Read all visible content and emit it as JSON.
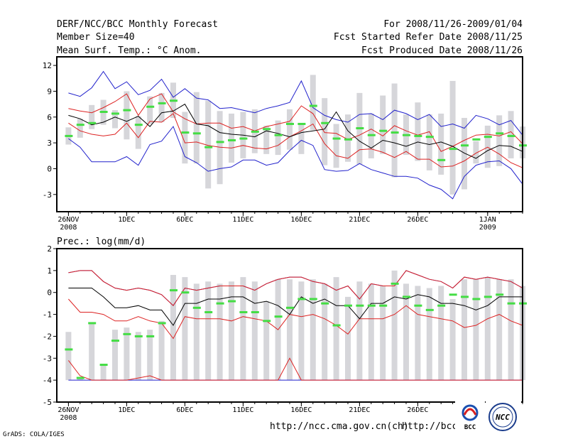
{
  "header": {
    "title": "DERF/NCC/BCC Monthly Forecast",
    "member_size": "Member Size=40",
    "period": "For 2008/11/26-2009/01/04",
    "refer_date": "Fcst Started Refer Date 2008/11/25",
    "produced_date": "Fcst Produced Date 2008/11/26"
  },
  "footer": {
    "grads_credit": "GrADS: COLA/IGES",
    "url1": "http://ncc.cma.gov.cn(ch)",
    "url2": "http://bcc.c",
    "logo_bcc": "BCC",
    "logo_ncc": "NCC"
  },
  "colors": {
    "ensemble_bar": "#d6d6da",
    "median": "#44dd44",
    "mean": "#000000",
    "sd_band": "#dd2222",
    "extreme": "#2222cc"
  },
  "chart_data": [
    {
      "id": "temperature",
      "type": "box-line",
      "title": "Mean Surf. Temp.: °C Anom.",
      "ylim": [
        -5,
        13
      ],
      "yticks": [
        12,
        9,
        6,
        3,
        0,
        -3
      ],
      "xlim": [
        0,
        40
      ],
      "xticks": [
        {
          "x": 1,
          "label": "26NOV",
          "sub": "2008"
        },
        {
          "x": 6,
          "label": "1DEC"
        },
        {
          "x": 11,
          "label": "6DEC"
        },
        {
          "x": 16,
          "label": "11DEC"
        },
        {
          "x": 21,
          "label": "16DEC"
        },
        {
          "x": 26,
          "label": "21DEC"
        },
        {
          "x": 31,
          "label": "26DEC"
        },
        {
          "x": 37,
          "label": "1JAN",
          "sub": "2009"
        }
      ],
      "bar_low": [
        2.8,
        3.6,
        4.6,
        5.1,
        4.7,
        3.4,
        2.3,
        5.2,
        5.4,
        5.9,
        0.6,
        0.6,
        -2.3,
        -1.8,
        0.7,
        1.2,
        1.8,
        1.7,
        1.6,
        2.2,
        1.7,
        4.5,
        0.4,
        0.1,
        0.8,
        0.5,
        1.2,
        1.7,
        -1.0,
        1.6,
        0.9,
        -0.2,
        -0.7,
        -3.0,
        -2.4,
        0.6,
        0.1,
        0.3,
        1.2,
        1.2
      ],
      "bar_high": [
        4.8,
        5.8,
        7.4,
        8.0,
        6.8,
        9.0,
        6.1,
        8.4,
        8.8,
        10.0,
        6.6,
        8.9,
        7.9,
        6.7,
        6.4,
        6.6,
        6.9,
        5.0,
        5.6,
        6.9,
        5.3,
        10.9,
        8.2,
        5.2,
        6.3,
        8.8,
        6.4,
        8.5,
        9.9,
        6.3,
        7.7,
        6.3,
        6.4,
        10.2,
        5.9,
        3.2,
        5.0,
        6.2,
        6.7,
        4.9
      ],
      "median": [
        3.8,
        5.1,
        5.3,
        6.6,
        6.4,
        6.8,
        5.1,
        7.2,
        7.6,
        7.9,
        4.2,
        4.1,
        2.5,
        3.1,
        3.3,
        3.5,
        4.3,
        4.6,
        3.9,
        5.2,
        5.2,
        7.3,
        5.3,
        3.5,
        3.4,
        4.7,
        3.9,
        4.4,
        4.2,
        3.9,
        3.8,
        3.7,
        1.0,
        2.3,
        2.7,
        3.4,
        3.7,
        4.1,
        3.8,
        2.7
      ],
      "mean": [
        6.2,
        5.8,
        5.1,
        5.4,
        6.0,
        5.5,
        6.1,
        4.9,
        6.5,
        6.7,
        7.5,
        5.2,
        5.0,
        4.2,
        4.0,
        3.9,
        3.7,
        4.4,
        4.1,
        3.7,
        4.2,
        4.4,
        4.6,
        6.6,
        4.4,
        3.2,
        2.4,
        3.3,
        3.0,
        2.6,
        3.1,
        2.8,
        3.1,
        2.6,
        1.8,
        1.2,
        2.1,
        2.7,
        2.6,
        2.0
      ],
      "plus_sd": [
        7.0,
        6.7,
        6.5,
        7.1,
        7.8,
        8.7,
        6.2,
        8.1,
        8.7,
        6.6,
        5.8,
        5.2,
        5.3,
        5.3,
        4.7,
        4.9,
        4.4,
        4.9,
        5.2,
        5.5,
        7.3,
        6.4,
        4.2,
        4.1,
        3.4,
        3.9,
        4.6,
        3.8,
        5.0,
        4.4,
        3.9,
        4.3,
        2.0,
        2.6,
        3.3,
        3.9,
        4.0,
        3.8,
        4.3,
        2.9
      ],
      "minus_sd": [
        5.3,
        4.4,
        4.0,
        3.8,
        4.0,
        5.3,
        3.6,
        5.5,
        5.4,
        6.4,
        3.0,
        3.1,
        2.7,
        2.5,
        2.4,
        2.7,
        2.4,
        2.3,
        2.7,
        3.7,
        4.4,
        5.2,
        2.9,
        1.5,
        1.2,
        2.2,
        2.3,
        1.9,
        1.3,
        2.0,
        1.1,
        1.1,
        0.2,
        0.3,
        0.9,
        1.8,
        2.5,
        1.7,
        0.7,
        0.1
      ],
      "max": [
        8.8,
        8.4,
        9.4,
        11.3,
        9.3,
        10.1,
        8.6,
        9.1,
        10.4,
        8.3,
        9.3,
        8.2,
        8.0,
        7.0,
        7.1,
        6.8,
        6.5,
        7.0,
        7.3,
        7.7,
        10.2,
        7.1,
        6.2,
        5.7,
        5.4,
        6.3,
        6.4,
        5.7,
        6.8,
        6.4,
        5.7,
        6.3,
        4.9,
        5.2,
        4.7,
        6.2,
        5.8,
        5.1,
        5.6,
        3.9
      ],
      "min": [
        3.5,
        2.5,
        0.8,
        0.8,
        0.8,
        1.4,
        0.4,
        2.8,
        3.2,
        4.9,
        1.4,
        0.7,
        -0.3,
        0.0,
        0.2,
        1.0,
        1.0,
        0.4,
        0.7,
        2.1,
        3.3,
        2.7,
        -0.1,
        -0.3,
        -0.2,
        0.6,
        -0.1,
        -0.5,
        -0.9,
        -0.9,
        -1.1,
        -1.9,
        -2.4,
        -3.5,
        -0.9,
        0.4,
        0.8,
        0.9,
        0.0,
        -1.8
      ]
    },
    {
      "id": "precipitation",
      "type": "box-line",
      "title": "Prec.: log(mm/d)",
      "ylim": [
        -5,
        2
      ],
      "yticks": [
        2,
        1,
        0,
        -1,
        -2,
        -3,
        -4,
        -5
      ],
      "xlim": [
        0,
        40
      ],
      "xticks": [
        {
          "x": 1,
          "label": "26NOV",
          "sub": "2008"
        },
        {
          "x": 6,
          "label": "1DEC"
        },
        {
          "x": 11,
          "label": "6DEC"
        },
        {
          "x": 16,
          "label": "11DEC"
        },
        {
          "x": 21,
          "label": "16DEC"
        },
        {
          "x": 26,
          "label": "21DEC"
        },
        {
          "x": 31,
          "label": "26DEC"
        }
      ],
      "bar_low": [
        -4.0,
        -4.0,
        -4.0,
        -4.0,
        -4.0,
        -4.0,
        -4.0,
        -4.0,
        -4.0,
        -4.0,
        -4.0,
        -4.0,
        -4.0,
        -4.0,
        -4.0,
        -4.0,
        -4.0,
        -4.0,
        -4.0,
        -4.0,
        -4.0,
        -4.0,
        -4.0,
        -4.0,
        -4.0,
        -4.0,
        -4.0,
        -4.0,
        -4.0,
        -4.0,
        -4.0,
        -4.0,
        -4.0,
        -4.0,
        -4.0,
        -4.0,
        -4.0,
        -4.0,
        -4.0,
        -4.0
      ],
      "bar_high": [
        -1.8,
        -3.9,
        -1.4,
        -3.3,
        -1.7,
        -1.6,
        -1.8,
        -1.7,
        -1.3,
        0.8,
        0.7,
        0.4,
        0.5,
        0.4,
        0.5,
        0.7,
        0.5,
        -0.4,
        0.6,
        0.6,
        0.5,
        0.6,
        0.4,
        0.7,
        -0.2,
        0.5,
        0.4,
        0.3,
        1.0,
        0.4,
        0.3,
        0.2,
        0.3,
        -0.3,
        0.6,
        0.6,
        0.7,
        0.6,
        0.6,
        0.3
      ],
      "median": [
        -2.6,
        -3.9,
        -1.4,
        -3.3,
        -2.2,
        -1.9,
        -2.0,
        -2.0,
        -1.4,
        0.1,
        0.0,
        -0.7,
        -0.9,
        -0.5,
        -0.4,
        -0.9,
        -0.9,
        -1.3,
        -1.1,
        -0.7,
        -0.3,
        -0.3,
        -0.5,
        -1.5,
        -0.6,
        -0.6,
        -0.6,
        -0.6,
        0.4,
        -0.2,
        -0.6,
        -0.8,
        -0.6,
        -0.1,
        -0.2,
        -0.3,
        -0.2,
        -0.1,
        -0.5,
        -0.5
      ],
      "mean": [
        0.2,
        0.2,
        0.2,
        -0.2,
        -0.7,
        -0.7,
        -0.6,
        -0.8,
        -0.8,
        -1.5,
        -0.5,
        -0.5,
        -0.3,
        -0.3,
        -0.2,
        -0.2,
        -0.5,
        -0.4,
        -0.6,
        -1.0,
        -0.2,
        -0.5,
        -0.3,
        -0.6,
        -0.6,
        -1.2,
        -0.5,
        -0.5,
        -0.2,
        -0.3,
        -0.1,
        -0.2,
        -0.5,
        -0.5,
        -0.6,
        -0.8,
        -0.6,
        -0.2,
        -0.2,
        -0.2
      ],
      "plus_sd": [
        0.9,
        1.0,
        1.0,
        0.5,
        0.2,
        0.1,
        0.2,
        0.1,
        -0.1,
        -0.6,
        0.2,
        0.1,
        0.2,
        0.3,
        0.3,
        0.3,
        0.1,
        0.4,
        0.6,
        0.7,
        0.7,
        0.5,
        0.4,
        0.1,
        0.3,
        -0.3,
        0.4,
        0.3,
        0.3,
        1.0,
        0.8,
        0.6,
        0.5,
        0.2,
        0.7,
        0.6,
        0.7,
        0.6,
        0.5,
        0.2
      ],
      "minus_sd": [
        -0.3,
        -0.9,
        -0.9,
        -1.0,
        -1.3,
        -1.3,
        -1.1,
        -1.3,
        -1.4,
        -2.1,
        -1.1,
        -1.2,
        -1.2,
        -1.2,
        -1.3,
        -1.1,
        -1.2,
        -1.3,
        -1.7,
        -1.0,
        -1.1,
        -1.0,
        -1.2,
        -1.5,
        -1.9,
        -1.2,
        -1.2,
        -1.2,
        -1.0,
        -0.6,
        -1.0,
        -1.1,
        -1.2,
        -1.3,
        -1.6,
        -1.5,
        -1.2,
        -1.0,
        -1.3,
        -1.5
      ],
      "max": [
        0.9,
        1.0,
        1.0,
        0.5,
        0.2,
        0.1,
        0.2,
        0.1,
        -0.1,
        -0.6,
        0.2,
        0.1,
        0.2,
        0.3,
        0.3,
        0.3,
        0.1,
        0.4,
        0.6,
        0.7,
        0.7,
        0.5,
        0.4,
        0.1,
        0.3,
        -0.3,
        0.4,
        0.3,
        0.3,
        1.0,
        0.8,
        0.6,
        0.5,
        0.2,
        0.7,
        0.6,
        0.7,
        0.6,
        0.5,
        0.2
      ],
      "min": [
        -4.0,
        -4.0,
        -4.0,
        -4.0,
        -4.0,
        -4.0,
        -4.0,
        -4.0,
        -4.0,
        -4.0,
        -4.0,
        -4.0,
        -4.0,
        -4.0,
        -4.0,
        -4.0,
        -4.0,
        -4.0,
        -4.0,
        -4.0,
        -4.0,
        -4.0,
        -4.0,
        -4.0,
        -4.0,
        -4.0,
        -4.0,
        -4.0,
        -4.0,
        -4.0,
        -4.0,
        -4.0,
        -4.0,
        -4.0,
        -4.0,
        -4.0,
        -4.0,
        -4.0,
        -4.0,
        -4.0
      ],
      "lower_red": [
        -3.1,
        -3.8,
        -4.0,
        -4.0,
        -4.0,
        -4.0,
        -3.9,
        -3.8,
        -4.0,
        -4.0,
        -4.0,
        -4.0,
        -4.0,
        -4.0,
        -4.0,
        -4.0,
        -4.0,
        -4.0,
        -4.0,
        -3.0,
        -4.0,
        -4.0,
        -4.0,
        -4.0,
        -4.0,
        -4.0,
        -4.0,
        -4.0,
        -4.0,
        -4.0,
        -4.0,
        -4.0,
        -4.0,
        -4.0,
        -4.0,
        -4.0,
        -4.0,
        -4.0,
        -4.0,
        -4.0
      ]
    }
  ]
}
